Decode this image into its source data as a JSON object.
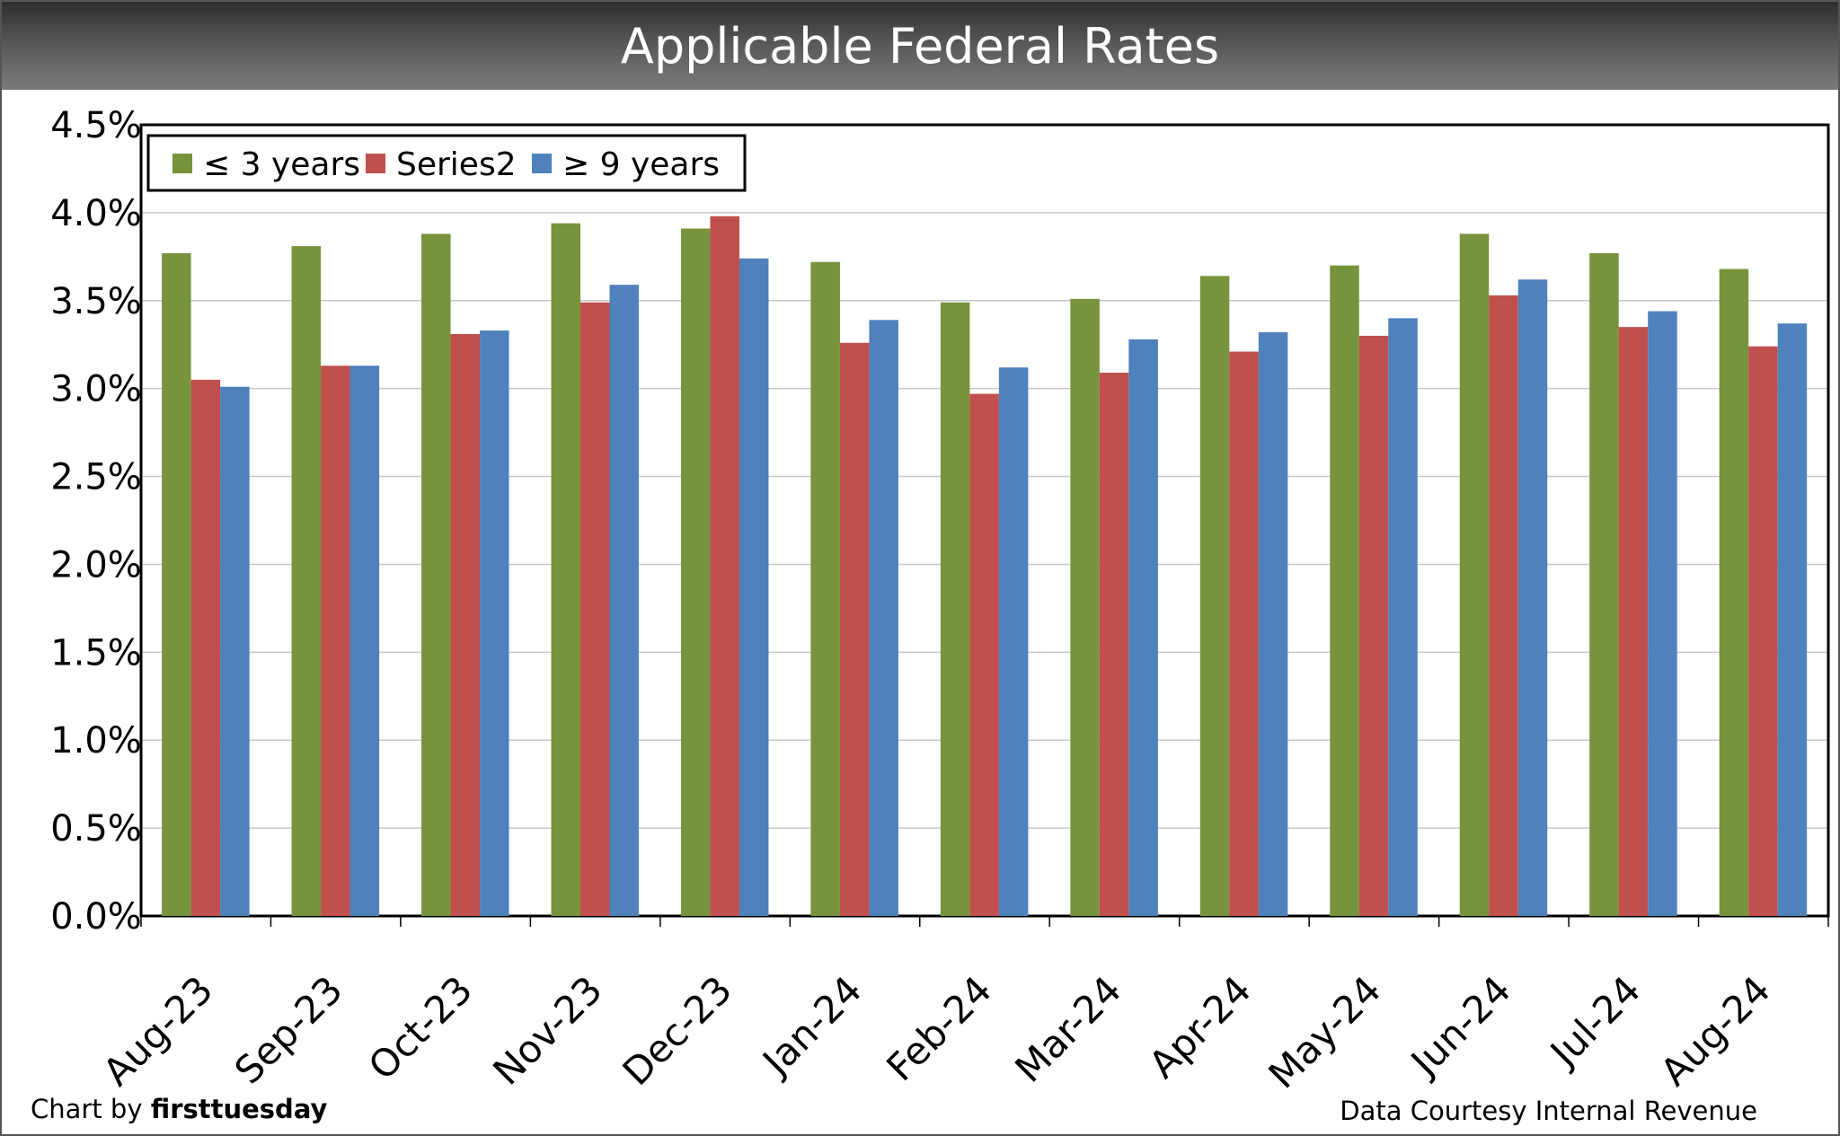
{
  "chart_data": {
    "type": "bar",
    "title": "Applicable Federal Rates",
    "categories": [
      "Aug-23",
      "Sep-23",
      "Oct-23",
      "Nov-23",
      "Dec-23",
      "Jan-24",
      "Feb-24",
      "Mar-24",
      "Apr-24",
      "May-24",
      "Jun-24",
      "Jul-24",
      "Aug-24"
    ],
    "series": [
      {
        "name": "≤ 3 years",
        "color": "#77933c",
        "values": [
          3.77,
          3.81,
          3.88,
          3.94,
          3.91,
          3.72,
          3.49,
          3.51,
          3.64,
          3.7,
          3.88,
          3.77,
          3.68
        ]
      },
      {
        "name": "Series2",
        "color": "#c0504d",
        "values": [
          3.05,
          3.13,
          3.31,
          3.49,
          3.98,
          3.26,
          2.97,
          3.09,
          3.21,
          3.3,
          3.53,
          3.35,
          3.24
        ]
      },
      {
        "name": "≥  9 years",
        "color": "#4f81bd",
        "values": [
          3.01,
          3.13,
          3.33,
          3.59,
          3.74,
          3.39,
          3.12,
          3.28,
          3.32,
          3.4,
          3.62,
          3.44,
          3.37
        ]
      }
    ],
    "ylim": [
      0,
      4.5
    ],
    "yticks": [
      "0.0%",
      "0.5%",
      "1.0%",
      "1.5%",
      "2.0%",
      "2.5%",
      "3.0%",
      "3.5%",
      "4.0%",
      "4.5%"
    ],
    "grid": true,
    "legend": "top-left",
    "xlabel": "",
    "ylabel": ""
  },
  "footer": {
    "credit_prefix": "Chart by ",
    "credit_brand": "firsttuesday",
    "source": "Data Courtesy Internal Revenue"
  }
}
